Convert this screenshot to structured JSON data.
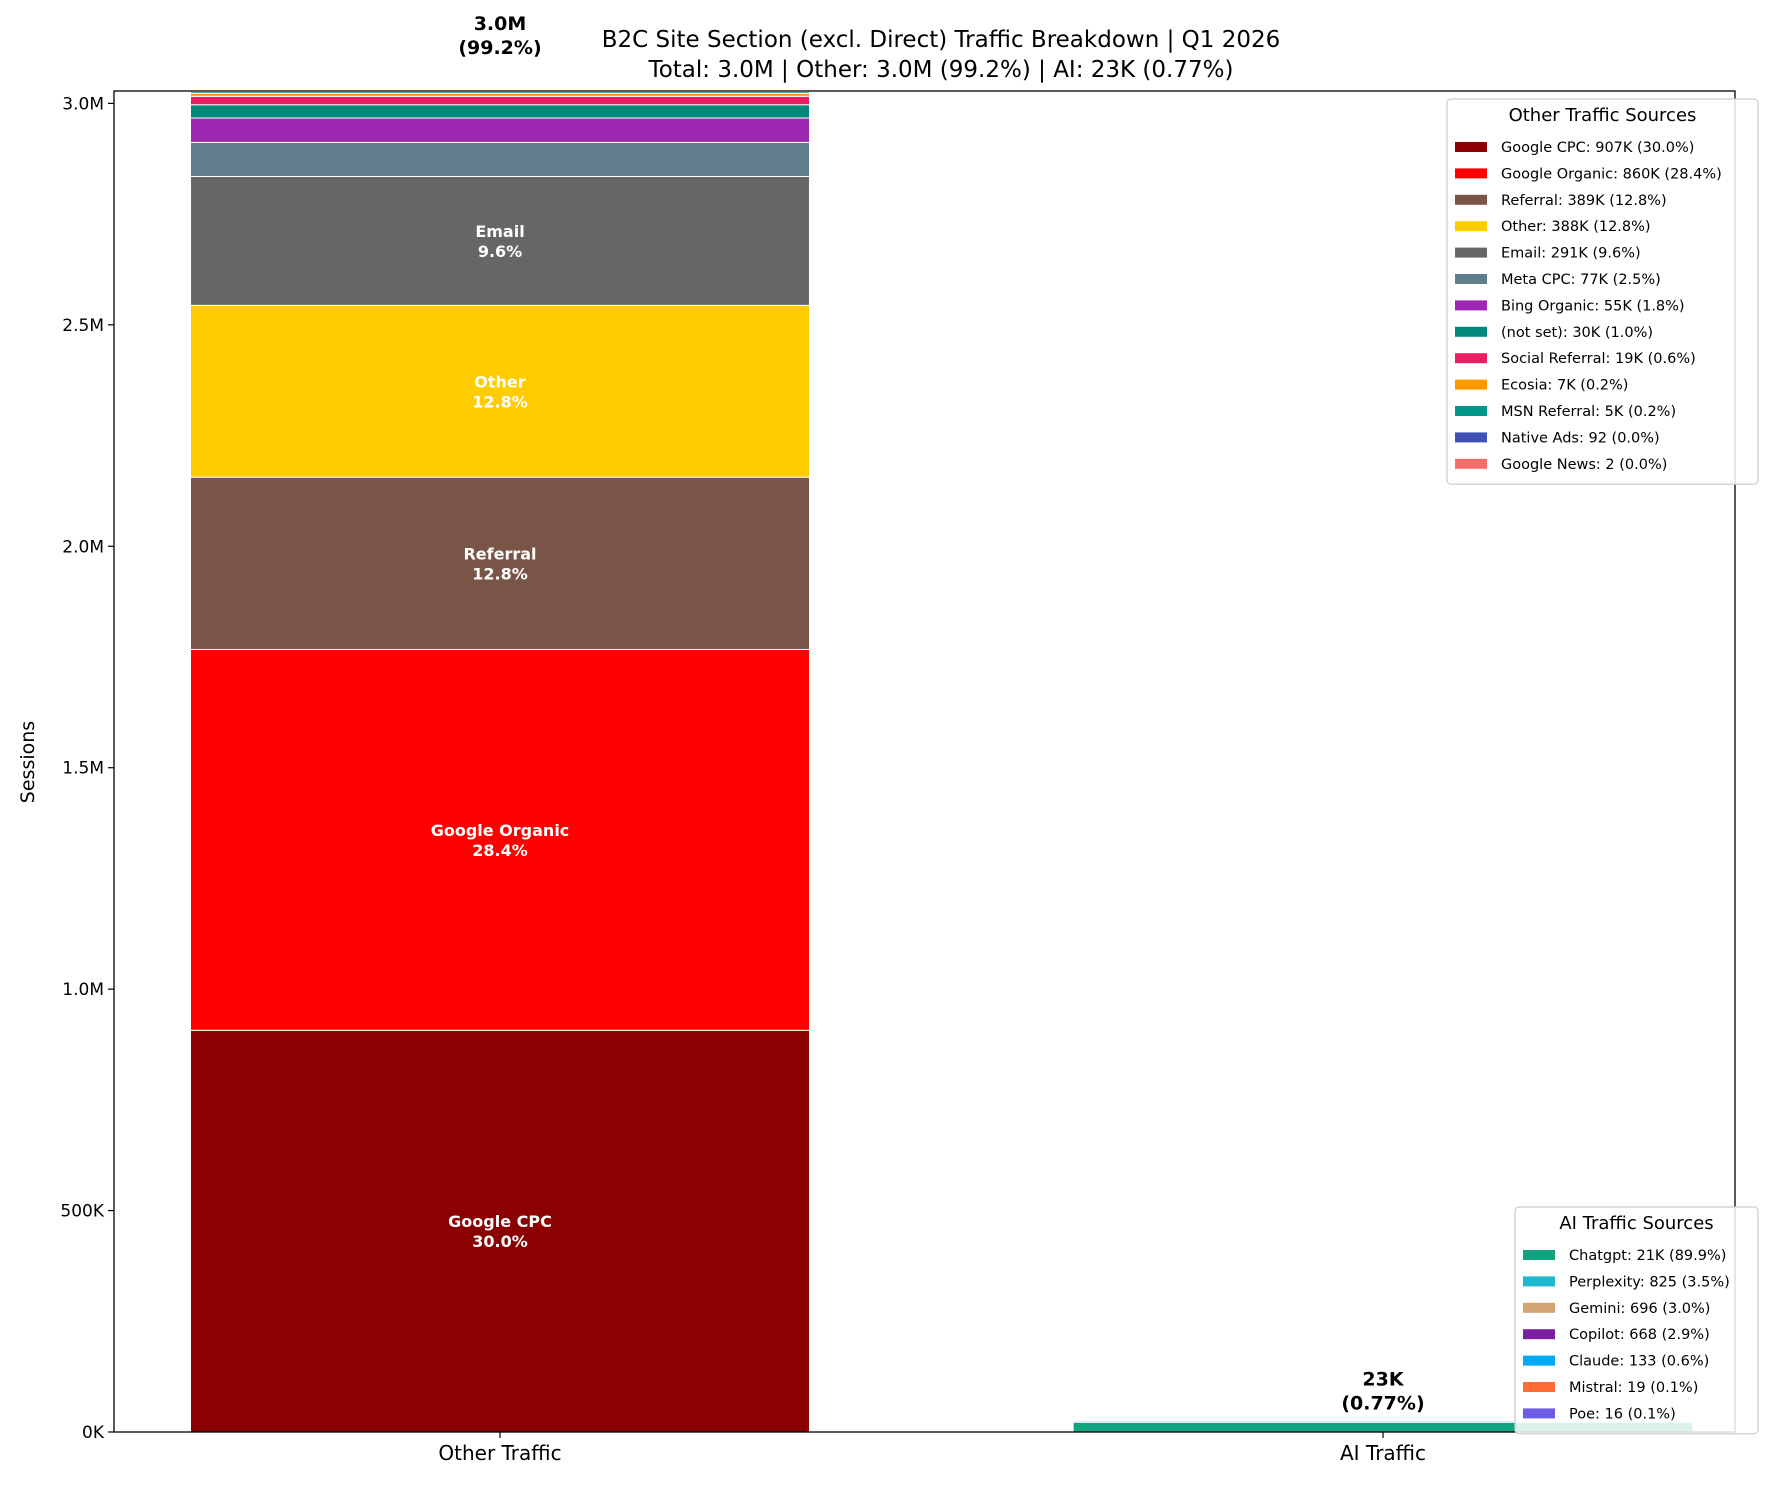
{
  "chart_data": {
    "type": "bar",
    "stacked": true,
    "title": "B2C Site Section (excl. Direct) Traffic Breakdown | Q1 2026",
    "subtitle": "Total: 3.0M | Other: 3.0M (99.2%) | AI: 23K (0.77%)",
    "xlabel": "",
    "ylabel": "Sessions",
    "categories": [
      "Other Traffic",
      "AI Traffic"
    ],
    "ylim": [
      0,
      3028000
    ],
    "yticks": [
      0,
      500000,
      1000000,
      1500000,
      2000000,
      2500000,
      3000000
    ],
    "ytick_labels": [
      "0K",
      "500K",
      "1.0M",
      "1.5M",
      "2.0M",
      "2.5M",
      "3.0M"
    ],
    "grid": false,
    "bar_totals": [
      {
        "line1": "3.0M",
        "line2": "(99.2%)"
      },
      {
        "line1": "23K",
        "line2": "(0.77%)"
      }
    ],
    "stacks": [
      {
        "category": "Other Traffic",
        "legend_title": "Other Traffic Sources",
        "legend_placement": "top-right",
        "segments": [
          {
            "name": "Google CPC",
            "value": 907000,
            "pct": "30.0%",
            "color": "#8B0000",
            "legend": "Google CPC: 907K (30.0%)",
            "inner_label": true
          },
          {
            "name": "Google Organic",
            "value": 860000,
            "pct": "28.4%",
            "color": "#FF0000",
            "legend": "Google Organic: 860K (28.4%)",
            "inner_label": true
          },
          {
            "name": "Referral",
            "value": 389000,
            "pct": "12.8%",
            "color": "#795548",
            "legend": "Referral: 389K (12.8%)",
            "inner_label": true
          },
          {
            "name": "Other",
            "value": 388000,
            "pct": "12.8%",
            "color": "#FFCC00",
            "legend": "Other: 388K (12.8%)",
            "inner_label": true
          },
          {
            "name": "Email",
            "value": 291000,
            "pct": "9.6%",
            "color": "#666666",
            "legend": "Email: 291K (9.6%)",
            "inner_label": true
          },
          {
            "name": "Meta CPC",
            "value": 77000,
            "pct": "2.5%",
            "color": "#607D8B",
            "legend": "Meta CPC: 77K (2.5%)",
            "inner_label": false
          },
          {
            "name": "Bing Organic",
            "value": 55000,
            "pct": "1.8%",
            "color": "#9C27B0",
            "legend": "Bing Organic: 55K (1.8%)",
            "inner_label": false
          },
          {
            "name": "(not set)",
            "value": 30000,
            "pct": "1.0%",
            "color": "#00897B",
            "legend": "(not set): 30K (1.0%)",
            "inner_label": false
          },
          {
            "name": "Social Referral",
            "value": 19000,
            "pct": "0.6%",
            "color": "#E91E63",
            "legend": "Social Referral: 19K (0.6%)",
            "inner_label": false
          },
          {
            "name": "Ecosia",
            "value": 7000,
            "pct": "0.2%",
            "color": "#FF9800",
            "legend": "Ecosia: 7K (0.2%)",
            "inner_label": false
          },
          {
            "name": "MSN Referral",
            "value": 5000,
            "pct": "0.2%",
            "color": "#009688",
            "legend": "MSN Referral: 5K (0.2%)",
            "inner_label": false
          },
          {
            "name": "Native Ads",
            "value": 92,
            "pct": "0.0%",
            "color": "#3F51B5",
            "legend": "Native Ads: 92 (0.0%)",
            "inner_label": false
          },
          {
            "name": "Google News",
            "value": 2,
            "pct": "0.0%",
            "color": "#FF6B6B",
            "legend": "Google News: 2 (0.0%)",
            "inner_label": false
          }
        ]
      },
      {
        "category": "AI Traffic",
        "legend_title": "AI Traffic Sources",
        "legend_placement": "bottom-right",
        "segments": [
          {
            "name": "Chatgpt",
            "value": 21000,
            "pct": "89.9%",
            "color": "#10A37F",
            "legend": "Chatgpt: 21K (89.9%)"
          },
          {
            "name": "Perplexity",
            "value": 825,
            "pct": "3.5%",
            "color": "#20B8CD",
            "legend": "Perplexity: 825 (3.5%)"
          },
          {
            "name": "Gemini",
            "value": 696,
            "pct": "3.0%",
            "color": "#D4A373",
            "legend": "Gemini: 696 (3.0%)"
          },
          {
            "name": "Copilot",
            "value": 668,
            "pct": "2.9%",
            "color": "#7B1FA2",
            "legend": "Copilot: 668 (2.9%)"
          },
          {
            "name": "Claude",
            "value": 133,
            "pct": "0.6%",
            "color": "#03A9F4",
            "legend": "Claude: 133 (0.6%)"
          },
          {
            "name": "Mistral",
            "value": 19,
            "pct": "0.1%",
            "color": "#FF6B35",
            "legend": "Mistral: 19 (0.1%)"
          },
          {
            "name": "Poe",
            "value": 16,
            "pct": "0.1%",
            "color": "#6C5CE7",
            "legend": "Poe: 16 (0.1%)"
          }
        ]
      }
    ]
  }
}
